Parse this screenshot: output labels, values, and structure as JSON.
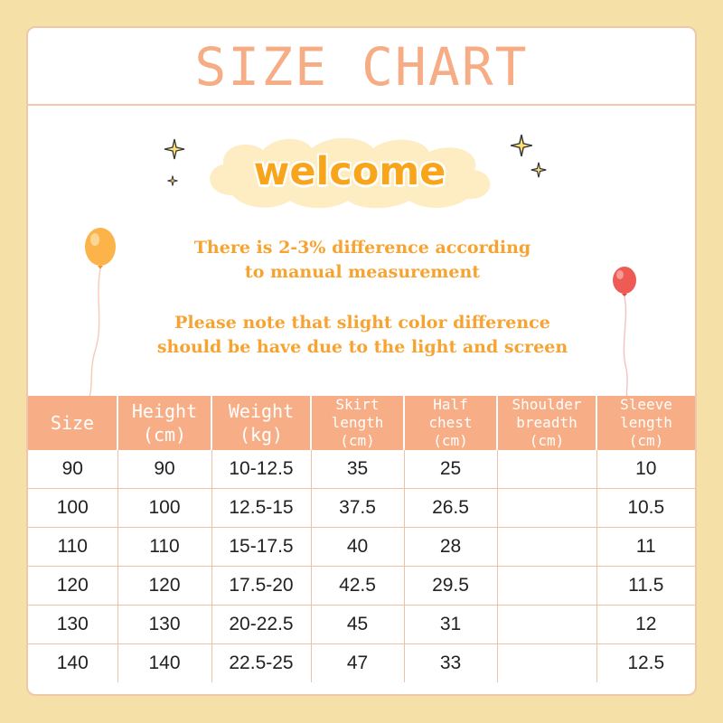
{
  "title": "SIZE CHART",
  "welcome": "welcome",
  "notes": {
    "line1": "There is 2-3% difference according",
    "line2": "to manual measurement",
    "line3": "Please note that slight color difference",
    "line4": "should be have due to the light and screen"
  },
  "colors": {
    "background": "#f5e0a8",
    "accent": "#f7ae86",
    "welcome_text": "#f9a51c",
    "note_text": "#f7a332"
  },
  "icons": [
    "sparkle-star-icon",
    "orange-balloon-icon",
    "red-balloon-icon",
    "cloud-shape"
  ],
  "table": {
    "headers": [
      [
        "Size"
      ],
      [
        "Height",
        "(cm)"
      ],
      [
        "Weight",
        "(kg)"
      ],
      [
        "Skirt",
        "length",
        "(cm)"
      ],
      [
        "Half",
        "chest",
        "(cm)"
      ],
      [
        "Shoulder",
        "breadth",
        "(cm)"
      ],
      [
        "Sleeve",
        "length",
        "(cm)"
      ]
    ],
    "rows": [
      [
        "90",
        "90",
        "10-12.5",
        "35",
        "25",
        "",
        "10"
      ],
      [
        "100",
        "100",
        "12.5-15",
        "37.5",
        "26.5",
        "",
        "10.5"
      ],
      [
        "110",
        "110",
        "15-17.5",
        "40",
        "28",
        "",
        "11"
      ],
      [
        "120",
        "120",
        "17.5-20",
        "42.5",
        "29.5",
        "",
        "11.5"
      ],
      [
        "130",
        "130",
        "20-22.5",
        "45",
        "31",
        "",
        "12"
      ],
      [
        "140",
        "140",
        "22.5-25",
        "47",
        "33",
        "",
        "12.5"
      ]
    ]
  }
}
